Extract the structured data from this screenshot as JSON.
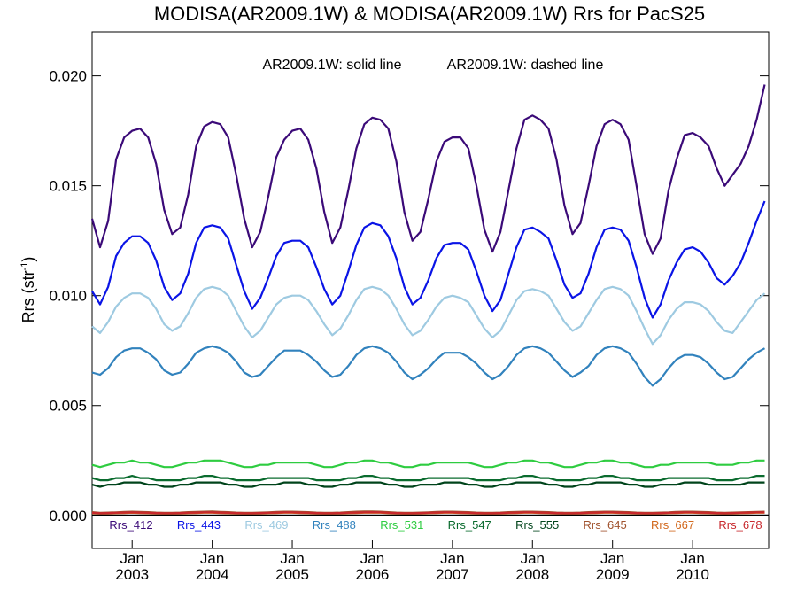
{
  "chart_data": {
    "type": "line",
    "title": "MODISA(AR2009.1W) & MODISA(AR2009.1W)  Rrs for PacS25",
    "annotation_solid": "AR2009.1W: solid line",
    "annotation_dashed": "AR2009.1W: dashed line",
    "ylabel_main": "Rrs (str",
    "ylabel_sup": "-1",
    "ylabel_close": ")",
    "xlim": [
      2002.5,
      2010.95
    ],
    "ylim": [
      -0.0015,
      0.022
    ],
    "grid": false,
    "legend_placement": "bottom",
    "y_ticks": [
      {
        "value": 0.0,
        "label": "0.000"
      },
      {
        "value": 0.005,
        "label": "0.005"
      },
      {
        "value": 0.01,
        "label": "0.010"
      },
      {
        "value": 0.015,
        "label": "0.015"
      },
      {
        "value": 0.02,
        "label": "0.020"
      }
    ],
    "x_ticks": [
      {
        "value": 2003.0,
        "month": "Jan",
        "year": "2003"
      },
      {
        "value": 2004.0,
        "month": "Jan",
        "year": "2004"
      },
      {
        "value": 2005.0,
        "month": "Jan",
        "year": "2005"
      },
      {
        "value": 2006.0,
        "month": "Jan",
        "year": "2006"
      },
      {
        "value": 2007.0,
        "month": "Jan",
        "year": "2007"
      },
      {
        "value": 2008.0,
        "month": "Jan",
        "year": "2008"
      },
      {
        "value": 2009.0,
        "month": "Jan",
        "year": "2009"
      },
      {
        "value": 2010.0,
        "month": "Jan",
        "year": "2010"
      }
    ],
    "x": [
      2002.5,
      2002.6,
      2002.7,
      2002.8,
      2002.9,
      2003.0,
      2003.1,
      2003.2,
      2003.3,
      2003.4,
      2003.5,
      2003.6,
      2003.7,
      2003.8,
      2003.9,
      2004.0,
      2004.1,
      2004.2,
      2004.3,
      2004.4,
      2004.5,
      2004.6,
      2004.7,
      2004.8,
      2004.9,
      2005.0,
      2005.1,
      2005.2,
      2005.3,
      2005.4,
      2005.5,
      2005.6,
      2005.7,
      2005.8,
      2005.9,
      2006.0,
      2006.1,
      2006.2,
      2006.3,
      2006.4,
      2006.5,
      2006.6,
      2006.7,
      2006.8,
      2006.9,
      2007.0,
      2007.1,
      2007.2,
      2007.3,
      2007.4,
      2007.5,
      2007.6,
      2007.7,
      2007.8,
      2007.9,
      2008.0,
      2008.1,
      2008.2,
      2008.3,
      2008.4,
      2008.5,
      2008.6,
      2008.7,
      2008.8,
      2008.9,
      2009.0,
      2009.1,
      2009.2,
      2009.3,
      2009.4,
      2009.5,
      2009.6,
      2009.7,
      2009.8,
      2009.9,
      2010.0,
      2010.1,
      2010.2,
      2010.3,
      2010.4,
      2010.5,
      2010.6,
      2010.7,
      2010.8,
      2010.9
    ],
    "series": [
      {
        "name": "Rrs_412",
        "color": "#3b0a78",
        "values": [
          0.0135,
          0.0122,
          0.0134,
          0.0162,
          0.0172,
          0.0175,
          0.0176,
          0.0172,
          0.016,
          0.0139,
          0.0128,
          0.0131,
          0.0146,
          0.0168,
          0.0177,
          0.0179,
          0.0178,
          0.0172,
          0.0155,
          0.0135,
          0.0122,
          0.0129,
          0.0145,
          0.0163,
          0.0171,
          0.0175,
          0.0176,
          0.0171,
          0.0158,
          0.0138,
          0.0124,
          0.0131,
          0.0148,
          0.0167,
          0.0178,
          0.0181,
          0.018,
          0.0176,
          0.0161,
          0.0138,
          0.0125,
          0.0129,
          0.0144,
          0.0161,
          0.017,
          0.0172,
          0.0172,
          0.0167,
          0.015,
          0.013,
          0.012,
          0.0129,
          0.0148,
          0.0167,
          0.018,
          0.0182,
          0.018,
          0.0176,
          0.0162,
          0.0141,
          0.0128,
          0.0133,
          0.015,
          0.0168,
          0.0178,
          0.018,
          0.0178,
          0.0171,
          0.015,
          0.0128,
          0.0119,
          0.0126,
          0.0148,
          0.0162,
          0.0173,
          0.0174,
          0.0172,
          0.0168,
          0.0158,
          0.015,
          0.0155,
          0.016,
          0.0168,
          0.018,
          0.0196
        ]
      },
      {
        "name": "Rrs_443",
        "color": "#0a14e6",
        "values": [
          0.0102,
          0.0096,
          0.0104,
          0.0118,
          0.0124,
          0.0127,
          0.0127,
          0.0124,
          0.0116,
          0.0104,
          0.0098,
          0.0101,
          0.011,
          0.0124,
          0.0131,
          0.0132,
          0.0131,
          0.0126,
          0.0114,
          0.0102,
          0.0094,
          0.0099,
          0.0108,
          0.0118,
          0.0124,
          0.0125,
          0.0125,
          0.0122,
          0.0113,
          0.0103,
          0.0096,
          0.01,
          0.0111,
          0.0123,
          0.0131,
          0.0133,
          0.0132,
          0.0127,
          0.0117,
          0.0104,
          0.0096,
          0.0099,
          0.0107,
          0.0117,
          0.0123,
          0.0124,
          0.0124,
          0.0121,
          0.0111,
          0.01,
          0.0093,
          0.0098,
          0.011,
          0.0122,
          0.013,
          0.0131,
          0.0129,
          0.0126,
          0.0116,
          0.0105,
          0.0099,
          0.0101,
          0.011,
          0.0122,
          0.013,
          0.0131,
          0.013,
          0.0125,
          0.0113,
          0.0099,
          0.009,
          0.0096,
          0.0107,
          0.0115,
          0.0121,
          0.0122,
          0.012,
          0.0115,
          0.0108,
          0.0105,
          0.0109,
          0.0115,
          0.0124,
          0.0134,
          0.0143
        ]
      },
      {
        "name": "Rrs_469",
        "color": "#9ecae1",
        "values": [
          0.0086,
          0.0083,
          0.0088,
          0.0095,
          0.0099,
          0.0101,
          0.0101,
          0.0099,
          0.0094,
          0.0087,
          0.0084,
          0.0086,
          0.0092,
          0.0099,
          0.0103,
          0.0104,
          0.0103,
          0.01,
          0.0093,
          0.0086,
          0.0081,
          0.0084,
          0.009,
          0.0096,
          0.0099,
          0.01,
          0.01,
          0.0098,
          0.0093,
          0.0087,
          0.0082,
          0.0085,
          0.0091,
          0.0098,
          0.0103,
          0.0104,
          0.0103,
          0.01,
          0.0094,
          0.0087,
          0.0082,
          0.0084,
          0.0089,
          0.0095,
          0.0099,
          0.01,
          0.0099,
          0.0097,
          0.0091,
          0.0085,
          0.0081,
          0.0084,
          0.0091,
          0.0098,
          0.0102,
          0.0103,
          0.0102,
          0.01,
          0.0094,
          0.0088,
          0.0084,
          0.0086,
          0.0092,
          0.0098,
          0.0103,
          0.0104,
          0.0103,
          0.01,
          0.0093,
          0.0085,
          0.0078,
          0.0082,
          0.0089,
          0.0094,
          0.0097,
          0.0097,
          0.0096,
          0.0093,
          0.0088,
          0.0084,
          0.0083,
          0.0088,
          0.0093,
          0.0098,
          0.0101
        ]
      },
      {
        "name": "Rrs_488",
        "color": "#3182bd",
        "values": [
          0.0065,
          0.0064,
          0.0067,
          0.0072,
          0.0075,
          0.0076,
          0.0076,
          0.0074,
          0.0071,
          0.0066,
          0.0064,
          0.0065,
          0.0069,
          0.0074,
          0.0076,
          0.0077,
          0.0076,
          0.0074,
          0.007,
          0.0065,
          0.0063,
          0.0064,
          0.0068,
          0.0072,
          0.0075,
          0.0075,
          0.0075,
          0.0073,
          0.007,
          0.0066,
          0.0063,
          0.0064,
          0.0068,
          0.0073,
          0.0076,
          0.0077,
          0.0076,
          0.0074,
          0.007,
          0.0065,
          0.0062,
          0.0064,
          0.0067,
          0.0071,
          0.0074,
          0.0074,
          0.0074,
          0.0072,
          0.0069,
          0.0065,
          0.0062,
          0.0064,
          0.0068,
          0.0073,
          0.0076,
          0.0077,
          0.0076,
          0.0074,
          0.007,
          0.0066,
          0.0063,
          0.0065,
          0.0068,
          0.0073,
          0.0076,
          0.0077,
          0.0076,
          0.0074,
          0.0069,
          0.0063,
          0.0059,
          0.0062,
          0.0067,
          0.0071,
          0.0073,
          0.0073,
          0.0072,
          0.0069,
          0.0065,
          0.0062,
          0.0063,
          0.0067,
          0.0071,
          0.0074,
          0.0076
        ]
      },
      {
        "name": "Rrs_531",
        "color": "#2ecc40",
        "values": [
          0.0023,
          0.0022,
          0.0023,
          0.0024,
          0.0024,
          0.0025,
          0.0024,
          0.0024,
          0.0023,
          0.0022,
          0.0022,
          0.0023,
          0.0024,
          0.0024,
          0.0025,
          0.0025,
          0.0025,
          0.0024,
          0.0023,
          0.0022,
          0.0022,
          0.0023,
          0.0023,
          0.0024,
          0.0024,
          0.0024,
          0.0024,
          0.0024,
          0.0023,
          0.0022,
          0.0022,
          0.0023,
          0.0024,
          0.0024,
          0.0025,
          0.0025,
          0.0024,
          0.0024,
          0.0023,
          0.0022,
          0.0022,
          0.0023,
          0.0023,
          0.0024,
          0.0024,
          0.0024,
          0.0024,
          0.0024,
          0.0023,
          0.0022,
          0.0022,
          0.0023,
          0.0024,
          0.0024,
          0.0025,
          0.0025,
          0.0024,
          0.0024,
          0.0023,
          0.0022,
          0.0022,
          0.0023,
          0.0024,
          0.0024,
          0.0025,
          0.0025,
          0.0024,
          0.0024,
          0.0023,
          0.0022,
          0.0022,
          0.0023,
          0.0023,
          0.0024,
          0.0024,
          0.0024,
          0.0024,
          0.0024,
          0.0023,
          0.0023,
          0.0023,
          0.0024,
          0.0024,
          0.0025,
          0.0025
        ]
      },
      {
        "name": "Rrs_547",
        "color": "#0a6b2e",
        "values": [
          0.0017,
          0.0016,
          0.0016,
          0.0017,
          0.0017,
          0.0018,
          0.0017,
          0.0017,
          0.0016,
          0.0016,
          0.0016,
          0.0016,
          0.0017,
          0.0017,
          0.0018,
          0.0018,
          0.0017,
          0.0017,
          0.0016,
          0.0016,
          0.0016,
          0.0016,
          0.0017,
          0.0017,
          0.0017,
          0.0017,
          0.0017,
          0.0017,
          0.0016,
          0.0016,
          0.0016,
          0.0016,
          0.0017,
          0.0017,
          0.0018,
          0.0018,
          0.0017,
          0.0017,
          0.0016,
          0.0016,
          0.0016,
          0.0016,
          0.0017,
          0.0017,
          0.0017,
          0.0017,
          0.0017,
          0.0017,
          0.0016,
          0.0016,
          0.0016,
          0.0016,
          0.0017,
          0.0017,
          0.0018,
          0.0018,
          0.0017,
          0.0017,
          0.0016,
          0.0016,
          0.0016,
          0.0016,
          0.0017,
          0.0017,
          0.0018,
          0.0018,
          0.0017,
          0.0017,
          0.0016,
          0.0016,
          0.0016,
          0.0016,
          0.0017,
          0.0017,
          0.0017,
          0.0017,
          0.0017,
          0.0017,
          0.0016,
          0.0016,
          0.0016,
          0.0017,
          0.0017,
          0.0018,
          0.0018
        ]
      },
      {
        "name": "Rrs_555",
        "color": "#00441b",
        "values": [
          0.0014,
          0.0013,
          0.0014,
          0.0014,
          0.0015,
          0.0015,
          0.0015,
          0.0014,
          0.0014,
          0.0013,
          0.0013,
          0.0014,
          0.0014,
          0.0015,
          0.0015,
          0.0015,
          0.0015,
          0.0014,
          0.0014,
          0.0013,
          0.0013,
          0.0014,
          0.0014,
          0.0014,
          0.0015,
          0.0015,
          0.0015,
          0.0014,
          0.0014,
          0.0013,
          0.0013,
          0.0014,
          0.0014,
          0.0015,
          0.0015,
          0.0015,
          0.0015,
          0.0014,
          0.0014,
          0.0013,
          0.0013,
          0.0014,
          0.0014,
          0.0014,
          0.0015,
          0.0015,
          0.0015,
          0.0014,
          0.0014,
          0.0013,
          0.0013,
          0.0014,
          0.0014,
          0.0015,
          0.0015,
          0.0015,
          0.0015,
          0.0014,
          0.0014,
          0.0013,
          0.0013,
          0.0014,
          0.0014,
          0.0015,
          0.0015,
          0.0015,
          0.0015,
          0.0014,
          0.0014,
          0.0013,
          0.0013,
          0.0014,
          0.0014,
          0.0014,
          0.0015,
          0.0015,
          0.0015,
          0.0014,
          0.0014,
          0.0014,
          0.0014,
          0.0014,
          0.0015,
          0.0015,
          0.0015
        ]
      },
      {
        "name": "Rrs_645",
        "color": "#a0522d",
        "values": [
          0.00015,
          0.00012,
          0.00013,
          0.00014,
          0.00016,
          0.00017,
          0.00016,
          0.00015,
          0.00013,
          0.00012,
          0.00012,
          0.00013,
          0.00015,
          0.00016,
          0.00017,
          0.00018,
          0.00016,
          0.00015,
          0.00013,
          0.00012,
          0.00012,
          0.00013,
          0.00014,
          0.00016,
          0.00017,
          0.00017,
          0.00016,
          0.00015,
          0.00013,
          0.00012,
          0.00012,
          0.00013,
          0.00015,
          0.00017,
          0.00018,
          0.00018,
          0.00017,
          0.00015,
          0.00013,
          0.00012,
          0.00012,
          0.00013,
          0.00014,
          0.00016,
          0.00017,
          0.00017,
          0.00016,
          0.00015,
          0.00013,
          0.00012,
          0.00012,
          0.00013,
          0.00015,
          0.00016,
          0.00017,
          0.00017,
          0.00016,
          0.00015,
          0.00013,
          0.00012,
          0.00012,
          0.00013,
          0.00015,
          0.00016,
          0.00017,
          0.00017,
          0.00016,
          0.00015,
          0.00013,
          0.00012,
          0.00012,
          0.00013,
          0.00014,
          0.00016,
          0.00017,
          0.00017,
          0.00016,
          0.00015,
          0.00013,
          0.00012,
          0.00013,
          0.00014,
          0.00015,
          0.00016,
          0.00017
        ]
      },
      {
        "name": "Rrs_667",
        "color": "#d2691e",
        "values": [
          0.0001,
          8e-05,
          9e-05,
          0.0001,
          0.00011,
          0.00012,
          0.00011,
          0.0001,
          9e-05,
          8e-05,
          8e-05,
          9e-05,
          0.0001,
          0.00011,
          0.00012,
          0.00012,
          0.00011,
          0.0001,
          9e-05,
          8e-05,
          8e-05,
          9e-05,
          0.0001,
          0.00011,
          0.00012,
          0.00012,
          0.00011,
          0.0001,
          9e-05,
          8e-05,
          8e-05,
          9e-05,
          0.0001,
          0.00011,
          0.00012,
          0.00013,
          0.00012,
          0.0001,
          9e-05,
          8e-05,
          8e-05,
          9e-05,
          0.0001,
          0.00011,
          0.00012,
          0.00012,
          0.00011,
          0.0001,
          9e-05,
          8e-05,
          8e-05,
          9e-05,
          0.0001,
          0.00011,
          0.00012,
          0.00012,
          0.00011,
          0.0001,
          9e-05,
          8e-05,
          8e-05,
          9e-05,
          0.0001,
          0.00011,
          0.00012,
          0.00012,
          0.00011,
          0.0001,
          9e-05,
          8e-05,
          8e-05,
          9e-05,
          0.0001,
          0.00011,
          0.00012,
          0.00012,
          0.00011,
          0.0001,
          9e-05,
          8e-05,
          9e-05,
          0.0001,
          0.00011,
          0.00012,
          0.00012
        ]
      },
      {
        "name": "Rrs_678",
        "color": "#c8282d",
        "values": [
          0.00012,
          0.0001,
          0.00011,
          0.00012,
          0.00013,
          0.00014,
          0.00013,
          0.00012,
          0.00011,
          0.0001,
          0.0001,
          0.00011,
          0.00012,
          0.00013,
          0.00014,
          0.00014,
          0.00013,
          0.00012,
          0.00011,
          0.0001,
          0.0001,
          0.00011,
          0.00012,
          0.00013,
          0.00014,
          0.00014,
          0.00013,
          0.00012,
          0.00011,
          0.0001,
          0.0001,
          0.00011,
          0.00012,
          0.00013,
          0.00014,
          0.00015,
          0.00014,
          0.00012,
          0.00011,
          0.0001,
          0.0001,
          0.00011,
          0.00012,
          0.00013,
          0.00014,
          0.00014,
          0.00013,
          0.00012,
          0.00011,
          0.0001,
          0.0001,
          0.00011,
          0.00012,
          0.00013,
          0.00014,
          0.00014,
          0.00013,
          0.00012,
          0.00011,
          0.0001,
          0.0001,
          0.00011,
          0.00012,
          0.00013,
          0.00014,
          0.00014,
          0.00013,
          0.00012,
          0.00011,
          0.0001,
          0.0001,
          0.00011,
          0.00012,
          0.00013,
          0.00014,
          0.00014,
          0.00013,
          0.00012,
          0.00011,
          0.0001,
          0.00011,
          0.00012,
          0.00013,
          0.00014,
          0.00014
        ]
      }
    ]
  }
}
